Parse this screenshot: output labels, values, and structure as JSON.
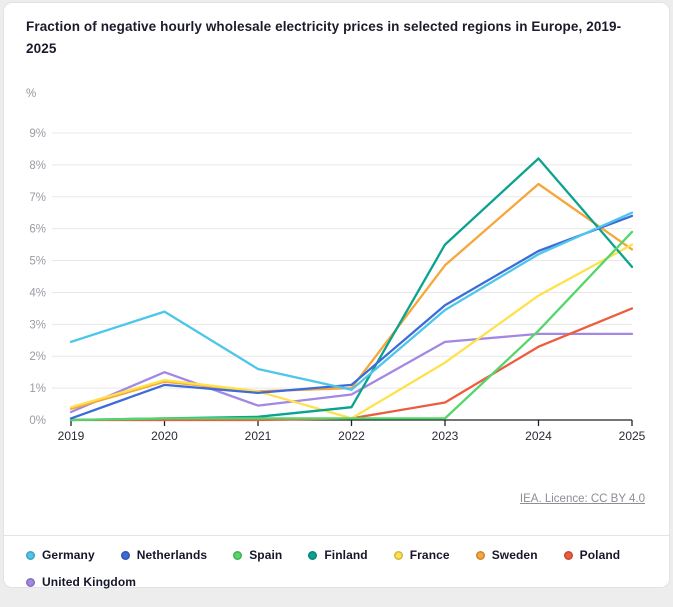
{
  "header": {
    "title": "Fraction of negative hourly wholesale electricity prices in selected regions in Europe, 2019-2025"
  },
  "source": {
    "label": "IEA. Licence: CC BY 4.0"
  },
  "chart_data": {
    "type": "line",
    "title": "Fraction of negative hourly wholesale electricity prices in selected regions in Europe, 2019-2025",
    "unit_label": "%",
    "x": [
      2019,
      2020,
      2021,
      2022,
      2023,
      2024,
      2025
    ],
    "x_tick_labels": [
      "2019",
      "2020",
      "2021",
      "2022",
      "2023",
      "2024",
      "2025"
    ],
    "ylim": [
      0,
      9
    ],
    "y_tick_step": 1,
    "y_tick_labels": [
      "0%",
      "1%",
      "2%",
      "3%",
      "4%",
      "5%",
      "6%",
      "7%",
      "8%",
      "9%"
    ],
    "grid": true,
    "legend_position": "bottom",
    "series": [
      {
        "name": "Germany",
        "color": "#4EC6EA",
        "values": [
          2.45,
          3.4,
          1.6,
          0.95,
          3.45,
          5.2,
          6.5
        ]
      },
      {
        "name": "Netherlands",
        "color": "#3D6BD8",
        "values": [
          0.05,
          1.1,
          0.85,
          1.1,
          3.6,
          5.3,
          6.4
        ]
      },
      {
        "name": "Spain",
        "color": "#55D66B",
        "values": [
          0.0,
          0.05,
          0.05,
          0.05,
          0.05,
          2.8,
          5.9
        ]
      },
      {
        "name": "Finland",
        "color": "#0BA38F",
        "values": [
          0.0,
          0.05,
          0.1,
          0.4,
          5.5,
          8.2,
          4.8
        ]
      },
      {
        "name": "France",
        "color": "#FFE14D",
        "values": [
          0.4,
          1.25,
          0.9,
          0.05,
          1.8,
          3.9,
          5.5
        ]
      },
      {
        "name": "Sweden",
        "color": "#F6A63B",
        "values": [
          0.35,
          1.2,
          0.9,
          1.0,
          4.85,
          7.4,
          5.35
        ]
      },
      {
        "name": "Poland",
        "color": "#EE5C40",
        "values": [
          0.0,
          0.0,
          0.0,
          0.05,
          0.55,
          2.3,
          3.5
        ]
      },
      {
        "name": "United Kingdom",
        "color": "#A288E3",
        "values": [
          0.25,
          1.5,
          0.45,
          0.8,
          2.45,
          2.7,
          2.7
        ]
      }
    ],
    "colors": {
      "gridline": "#e8e8ea",
      "axis": "#20202c",
      "y_tick_text": "#9b9ba3",
      "x_tick_text": "#2b2b36"
    }
  }
}
